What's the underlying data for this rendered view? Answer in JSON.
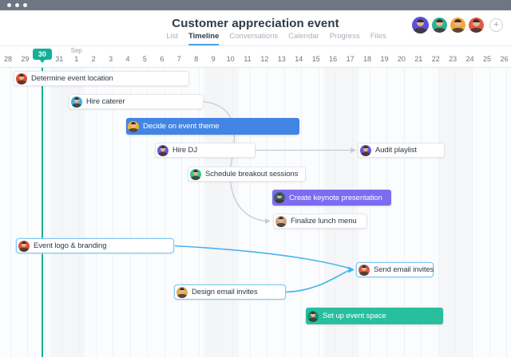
{
  "window": {
    "dots": 3
  },
  "header": {
    "title": "Customer appreciation event",
    "tabs": [
      {
        "label": "List",
        "active": false
      },
      {
        "label": "Timeline",
        "active": true
      },
      {
        "label": "Conversations",
        "active": false
      },
      {
        "label": "Calendar",
        "active": false
      },
      {
        "label": "Progress",
        "active": false
      },
      {
        "label": "Files",
        "active": false
      }
    ],
    "members": [
      {
        "name": "member-1",
        "color": "#5b51d8"
      },
      {
        "name": "member-2",
        "color": "#2bb39a"
      },
      {
        "name": "member-3",
        "color": "#f0a63a"
      },
      {
        "name": "member-4",
        "color": "#e05a4e"
      }
    ],
    "add_member_label": "+"
  },
  "timeline": {
    "month_label": "Sep",
    "month_anchor_index": 4,
    "dates": [
      "28",
      "29",
      "30",
      "31",
      "1",
      "2",
      "3",
      "4",
      "5",
      "6",
      "7",
      "8",
      "9",
      "10",
      "11",
      "12",
      "13",
      "14",
      "15",
      "16",
      "17",
      "18",
      "19",
      "20",
      "21",
      "22",
      "23",
      "24",
      "25",
      "26"
    ],
    "today": {
      "label": "30",
      "index": 2,
      "color": "#14b095"
    }
  },
  "tasks": [
    {
      "id": "determine-event-location",
      "label": "Determine event location",
      "style": "plain",
      "assignee_color": "#d94f3d"
    },
    {
      "id": "hire-caterer",
      "label": "Hire caterer",
      "style": "plain",
      "assignee_color": "#35b4e3"
    },
    {
      "id": "decide-on-event-theme",
      "label": "Decide on event theme",
      "style": "filled",
      "bar_color": "#4285e4",
      "assignee_color": "#f0b13c"
    },
    {
      "id": "hire-dj",
      "label": "Hire DJ",
      "style": "plain",
      "assignee_color": "#6a5ad8"
    },
    {
      "id": "audit-playlist",
      "label": "Audit playlist",
      "style": "plain",
      "assignee_color": "#6a5ad8"
    },
    {
      "id": "schedule-breakout-sessions",
      "label": "Schedule breakout sessions",
      "style": "plain",
      "assignee_color": "#35c98e"
    },
    {
      "id": "create-keynote-presentation",
      "label": "Create keynote presentation",
      "style": "filled",
      "bar_color": "#7b6cf0",
      "assignee_color": "#38616e"
    },
    {
      "id": "finalize-lunch-menu",
      "label": "Finalize lunch menu",
      "style": "plain",
      "assignee_color": "#c9a583"
    },
    {
      "id": "event-logo-branding",
      "label": "Event logo & branding",
      "style": "highlighted",
      "assignee_color": "#d94f3d"
    },
    {
      "id": "send-email-invites",
      "label": "Send email invites",
      "style": "highlighted",
      "assignee_color": "#d65745"
    },
    {
      "id": "design-email-invites",
      "label": "Design email invites",
      "style": "highlighted",
      "assignee_color": "#dfae55"
    },
    {
      "id": "set-up-event-space",
      "label": "Set up event space",
      "style": "filled",
      "bar_color": "#28bf9f",
      "assignee_color": "#17917a"
    }
  ],
  "connectors": [
    {
      "from": "hire-caterer",
      "to": "finalize-lunch-menu",
      "color": "#c7cbd0"
    },
    {
      "from": "hire-dj",
      "to": "audit-playlist",
      "color": "#c7cbd0"
    },
    {
      "from": "event-logo-branding",
      "to": "send-email-invites",
      "color": "#44b4f0"
    },
    {
      "from": "design-email-invites",
      "to": "send-email-invites",
      "color": "#44b4f0"
    }
  ],
  "colors": {
    "accent_blue": "#4aa3ee",
    "today_teal": "#14b095",
    "highlight_border": "#7fcaf4",
    "connector_gray": "#c7cbd0",
    "connector_blue": "#44b4f0"
  }
}
